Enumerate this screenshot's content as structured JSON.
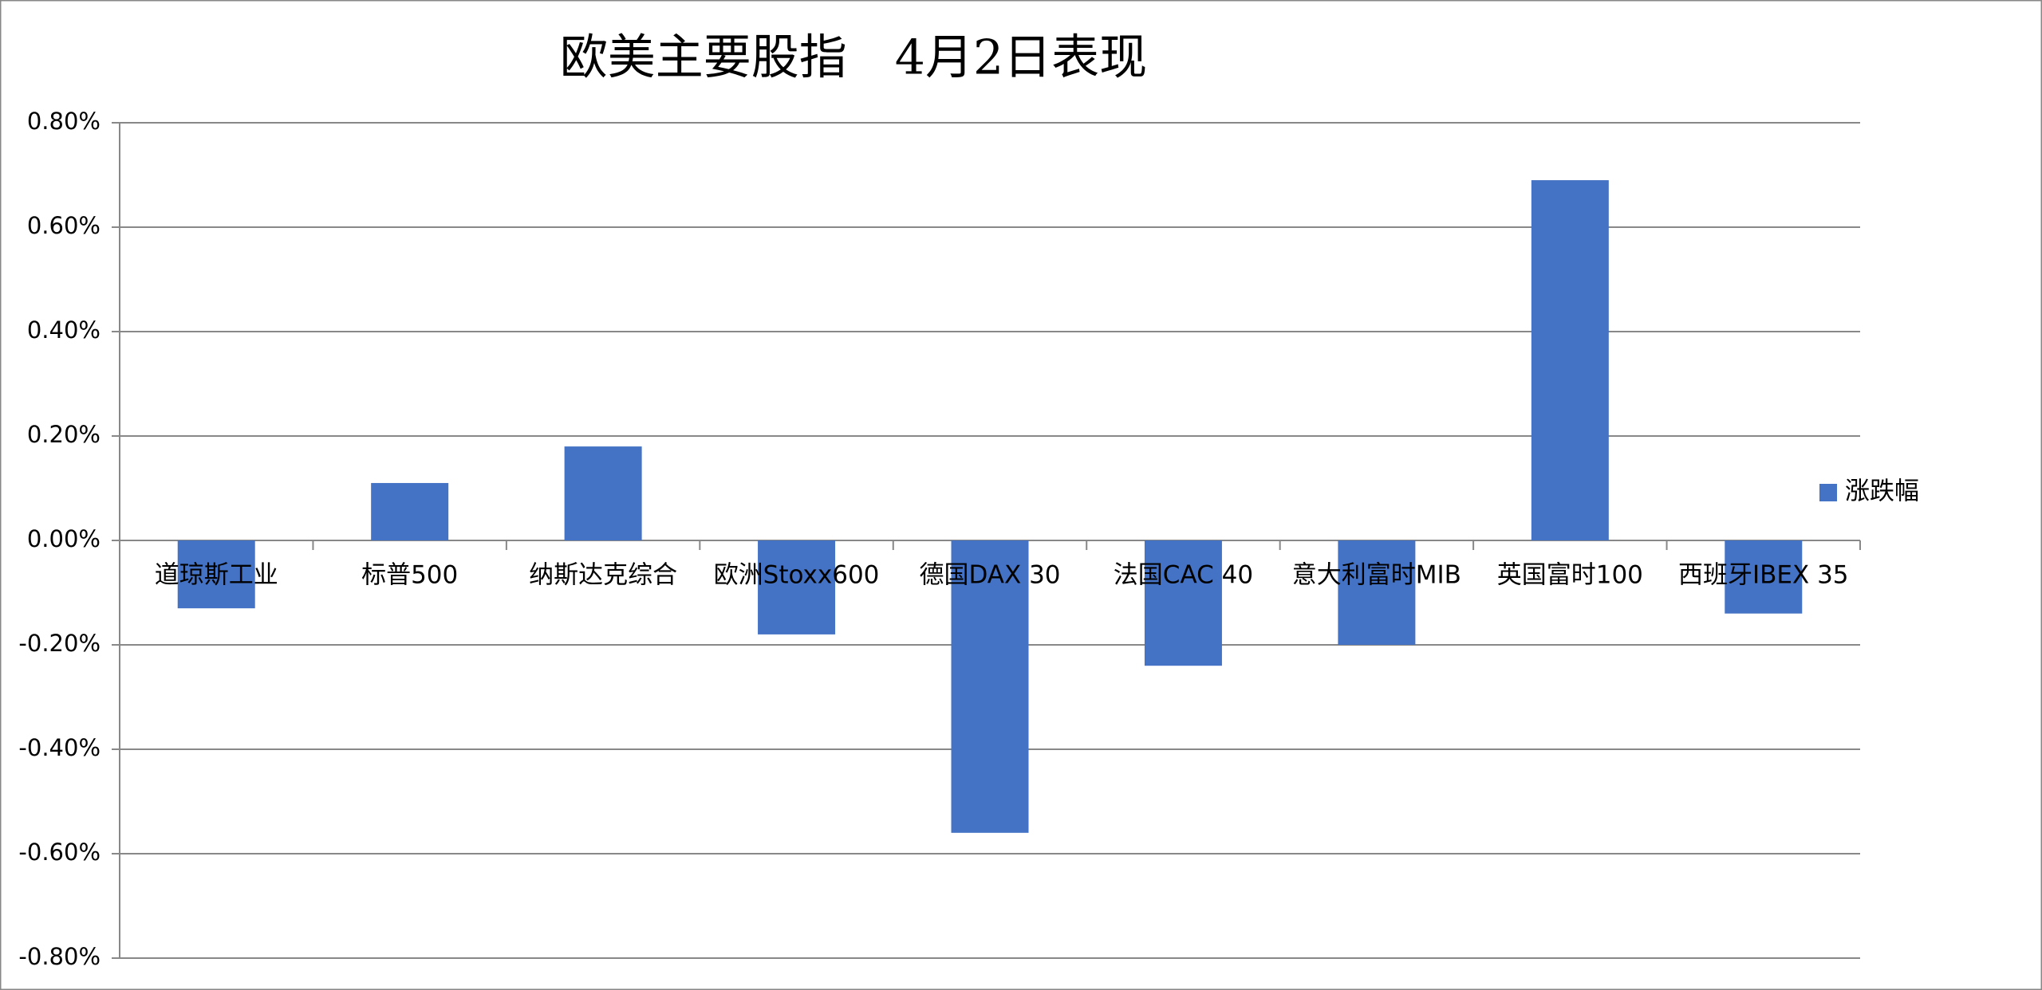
{
  "chart_data": {
    "type": "bar",
    "title": "欧美主要股指　4月2日表现",
    "categories": [
      "道琼斯工业",
      "标普500",
      "纳斯达克综合",
      "欧洲Stoxx600",
      "德国DAX 30",
      "法国CAC 40",
      "意大利富时MIB",
      "英国富时100",
      "西班牙IBEX 35"
    ],
    "series": [
      {
        "name": "涨跌幅",
        "color": "#4472c4",
        "values": [
          -0.13,
          0.11,
          0.18,
          -0.18,
          -0.56,
          -0.24,
          -0.2,
          0.69,
          -0.14
        ]
      }
    ],
    "ylim": [
      -0.8,
      0.8
    ],
    "yticks": [
      {
        "value": -0.8,
        "label": "-0.80%"
      },
      {
        "value": -0.6,
        "label": "-0.60%"
      },
      {
        "value": -0.4,
        "label": "-0.40%"
      },
      {
        "value": -0.2,
        "label": "-0.20%"
      },
      {
        "value": 0,
        "label": "0.00%"
      },
      {
        "value": 0.2,
        "label": "0.20%"
      },
      {
        "value": 0.4,
        "label": "0.40%"
      },
      {
        "value": 0.6,
        "label": "0.60%"
      },
      {
        "value": 0.8,
        "label": "0.80%"
      }
    ],
    "grid": true,
    "legend": "right"
  }
}
